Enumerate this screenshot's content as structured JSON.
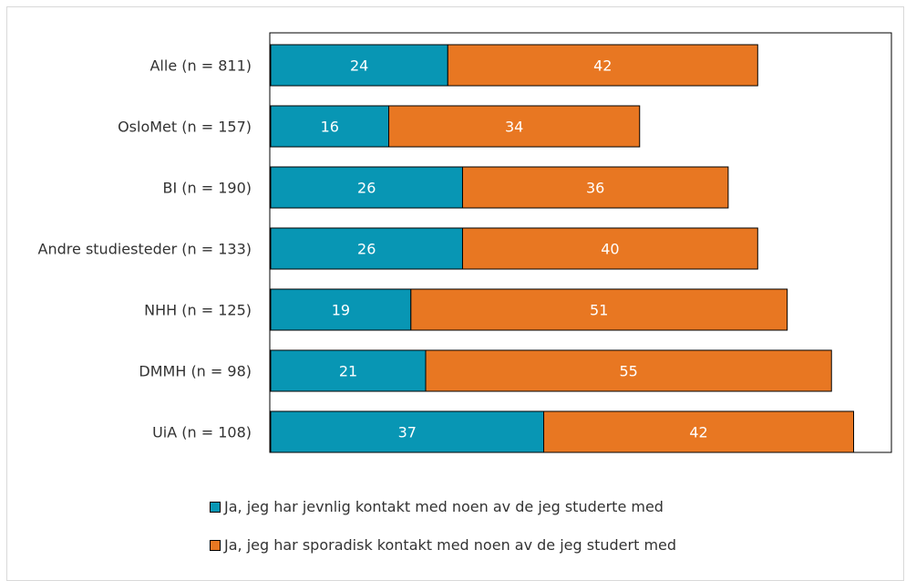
{
  "chart_data": {
    "type": "bar",
    "orientation": "horizontal",
    "stacked": true,
    "categories": [
      "Alle (n = 811)",
      "OsloMet (n = 157)",
      "BI (n = 190)",
      "Andre studiesteder (n = 133)",
      "NHH (n = 125)",
      "DMMH (n = 98)",
      "UiA (n = 108)"
    ],
    "series": [
      {
        "name": "Ja, jeg har jevnlig kontakt med noen av de jeg studerte med",
        "color": "#0896b4",
        "values": [
          24,
          16,
          26,
          26,
          19,
          21,
          37
        ]
      },
      {
        "name": "Ja, jeg har sporadisk kontakt med noen av de jeg studert med",
        "color": "#e87722",
        "values": [
          42,
          34,
          36,
          40,
          51,
          55,
          42
        ]
      }
    ],
    "xlim": [
      0,
      84
    ],
    "grid": false,
    "legend": "bottom"
  }
}
